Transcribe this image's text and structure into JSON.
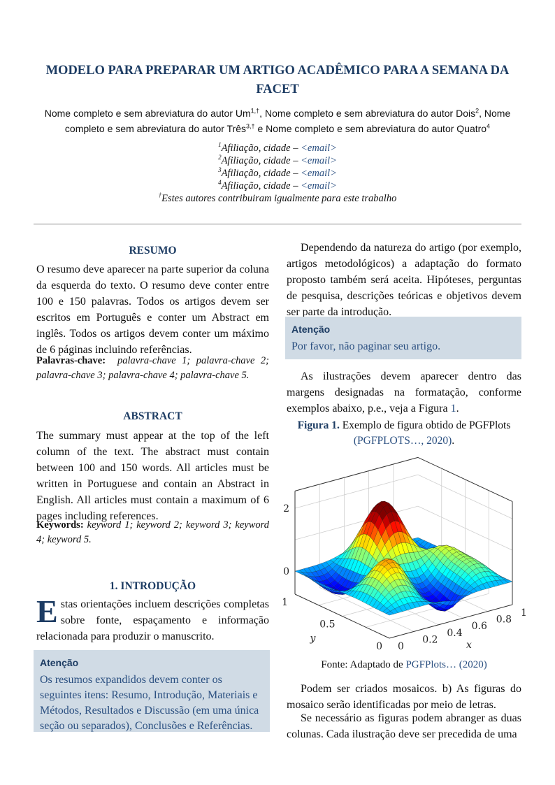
{
  "title": "MODELO PARA PREPARAR UM ARTIGO ACADÊMICO PARA A SEMANA DA FACET",
  "authors": [
    {
      "name": "Nome completo e sem abreviatura do autor Um",
      "sup": "1,†",
      "sep": ", "
    },
    {
      "name": "Nome completo e sem abreviatura do autor Dois",
      "sup": "2",
      "sep": ", "
    },
    {
      "name": "Nome completo e sem abreviatura do autor Três",
      "sup": "3,†",
      "sep": " e "
    },
    {
      "name": "Nome completo e sem abreviatura do autor Quatro",
      "sup": "4",
      "sep": ""
    }
  ],
  "affiliations": [
    {
      "sup": "1",
      "text": "Afiliação, cidade – ",
      "email": "<email>"
    },
    {
      "sup": "2",
      "text": "Afiliação, cidade – ",
      "email": "<email>"
    },
    {
      "sup": "3",
      "text": "Afiliação, cidade – ",
      "email": "<email>"
    },
    {
      "sup": "4",
      "text": "Afiliação, cidade – ",
      "email": "<email>"
    }
  ],
  "equal_contrib": {
    "sup": "†",
    "text": "Estes autores contribuiram igualmente para este trabalho"
  },
  "resumo": {
    "heading": "RESUMO",
    "body": "O resumo deve aparecer na parte superior da coluna da esquerda do texto. O resumo deve conter entre 100 e 150 palavras. Todos os artigos devem ser escritos em Português e conter um Abstract em inglês. Todos os artigos devem conter um máximo de 6 páginas incluindo referências.",
    "keywords_label": "Palavras-chave:",
    "keywords": "palavra-chave 1; palavra-chave 2; palavra-chave 3; palavra-chave 4; palavra-chave 5."
  },
  "abstract": {
    "heading": "ABSTRACT",
    "body": "The summary must appear at the top of the left column of the text. The abstract must contain between 100 and 150 words. All articles must be written in Portuguese and contain an Abstract in English. All articles must contain a maximum of 6 pages including references.",
    "keywords_label": "Keywords:",
    "keywords": "keyword 1; keyword 2; keyword 3; keyword 4; keyword 5."
  },
  "intro": {
    "heading": "1. INTRODUÇÃO",
    "dropcap": "E",
    "body": "stas orientações incluem descrições completas sobre fonte, espaçamento e informação relacionada para produzir o manuscrito.",
    "callout_title": "Atenção",
    "callout_body": "Os resumos expandidos devem conter os seguintes itens: Resumo, Introdução, Materiais e Métodos, Resultados e Discussão (em uma única seção ou separados), Conclusões e Referências."
  },
  "right": {
    "p1": "Dependendo da natureza do artigo (por exemplo, artigos metodológicos) a adaptação do formato proposto também será aceita. Hipóteses, perguntas de pesquisa, descrições teóricas e objetivos devem ser parte da introdução.",
    "callout_title": "Atenção",
    "callout_body": "Por favor, não paginar seu artigo.",
    "p2_pre": "As ilustrações devem aparecer dentro das margens designadas na formatação, conforme exemplos abaixo, p.e., veja a Figura ",
    "p2_ref": "1",
    "p2_post": ".",
    "fig_label": "Figura 1.",
    "fig_caption": "Exemplo de figura obtido de PGFPlots",
    "fig_cite": "(PGFPLOTS…, 2020)",
    "fig_cite_end": ".",
    "source_pre": "Fonte: Adaptado de ",
    "source_cite": "PGFPlots… (2020)",
    "p3": "Podem ser criados mosaicos. b) As figuras do mosaico serão identificadas por meio de letras.",
    "p4": "Se necessário as figuras podem abranger as duas colunas. Cada ilustração deve ser precedida de uma"
  },
  "chart_data": {
    "type": "surface3d",
    "colormap": "jet",
    "xlabel": "x",
    "ylabel": "y",
    "xlim": [
      0,
      1
    ],
    "ylim": [
      0,
      1
    ],
    "x_ticks": [
      "0",
      "0.2",
      "0.4",
      "0.6",
      "0.8",
      "1"
    ],
    "y_ticks": [
      "0",
      "0.5",
      "1"
    ],
    "z_ticks": [
      "0",
      "2"
    ],
    "grid": true
  },
  "colors": {
    "accent": "#1d3c63",
    "link": "#2a4f80",
    "callout_bg": "#d0dbe5"
  }
}
